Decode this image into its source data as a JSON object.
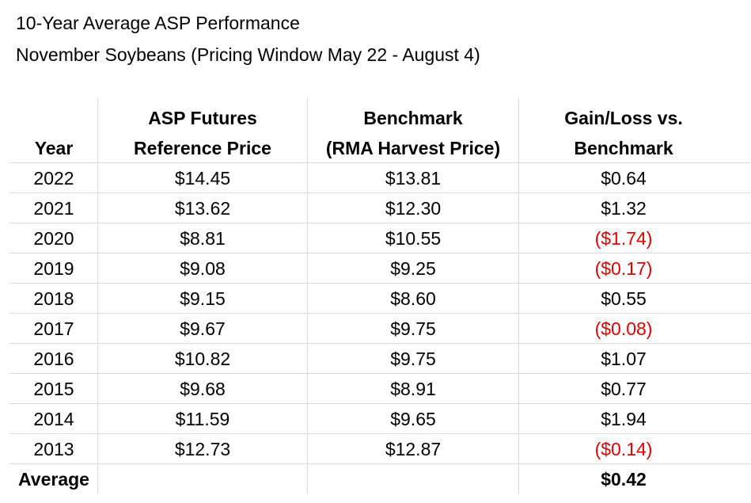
{
  "title": {
    "line1": "10-Year Average ASP Performance",
    "line2": "November Soybeans (Pricing Window May 22 - August 4)"
  },
  "table": {
    "headers": {
      "year": [
        "",
        "Year"
      ],
      "asp": [
        "ASP Futures",
        "Reference Price"
      ],
      "benchmark": [
        "Benchmark",
        "(RMA Harvest Price)"
      ],
      "gainloss": [
        "Gain/Loss vs.",
        "Benchmark"
      ]
    },
    "rows": [
      {
        "year": "2022",
        "asp": "$14.45",
        "benchmark": "$13.81",
        "gainloss": "$0.64",
        "negative": false
      },
      {
        "year": "2021",
        "asp": "$13.62",
        "benchmark": "$12.30",
        "gainloss": "$1.32",
        "negative": false
      },
      {
        "year": "2020",
        "asp": "$8.81",
        "benchmark": "$10.55",
        "gainloss": "($1.74)",
        "negative": true
      },
      {
        "year": "2019",
        "asp": "$9.08",
        "benchmark": "$9.25",
        "gainloss": "($0.17)",
        "negative": true
      },
      {
        "year": "2018",
        "asp": "$9.15",
        "benchmark": "$8.60",
        "gainloss": "$0.55",
        "negative": false
      },
      {
        "year": "2017",
        "asp": "$9.67",
        "benchmark": "$9.75",
        "gainloss": "($0.08)",
        "negative": true
      },
      {
        "year": "2016",
        "asp": "$10.82",
        "benchmark": "$9.75",
        "gainloss": "$1.07",
        "negative": false
      },
      {
        "year": "2015",
        "asp": "$9.68",
        "benchmark": "$8.91",
        "gainloss": "$0.77",
        "negative": false
      },
      {
        "year": "2014",
        "asp": "$11.59",
        "benchmark": "$9.65",
        "gainloss": "$1.94",
        "negative": false
      },
      {
        "year": "2013",
        "asp": "$12.73",
        "benchmark": "$12.87",
        "gainloss": "($0.14)",
        "negative": true
      }
    ],
    "average": {
      "label": "Average",
      "asp": "",
      "benchmark": "",
      "gainloss": "$0.42"
    }
  },
  "colors": {
    "negative": "#e00000",
    "gridline": "#d9d9d9"
  }
}
